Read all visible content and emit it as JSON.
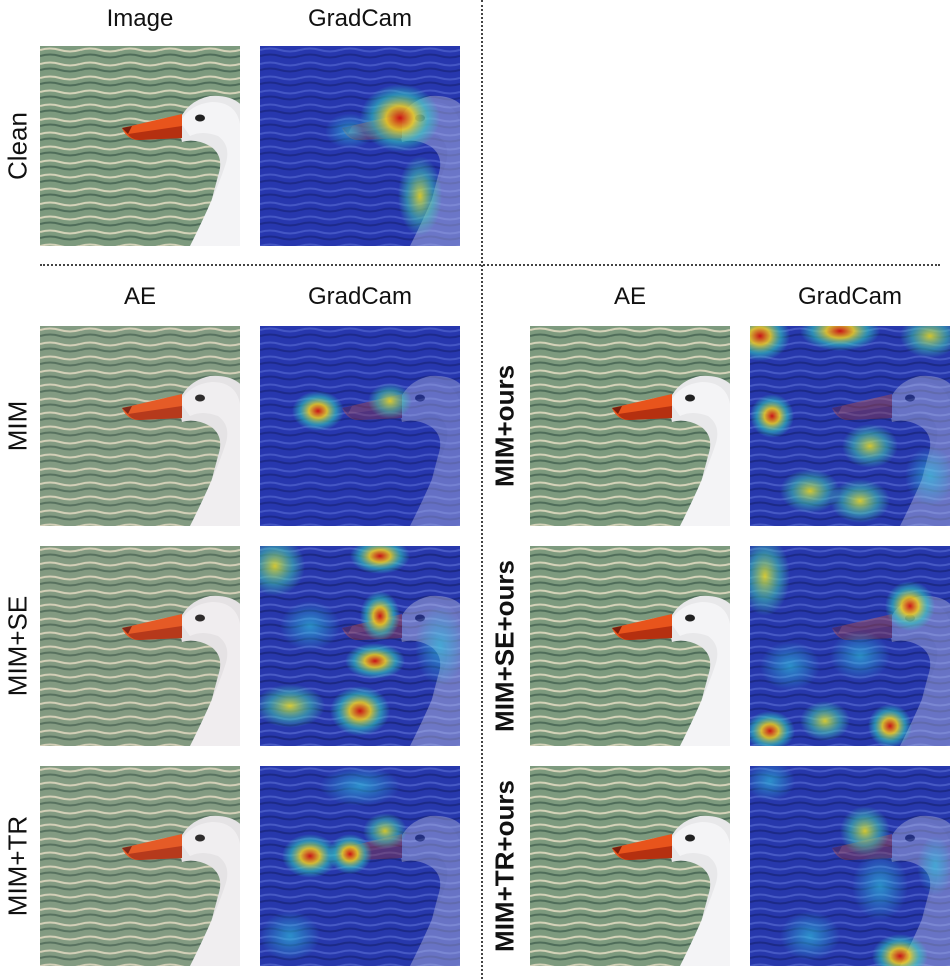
{
  "column_labels": {
    "top_image": "Image",
    "top_gradcam": "GradCam",
    "left_ae": "AE",
    "left_gradcam": "GradCam",
    "right_ae": "AE",
    "right_gradcam": "GradCam"
  },
  "row_labels": {
    "clean": "Clean",
    "mim": "MIM",
    "mim_se": "MIM+SE",
    "mim_tr": "MIM+TR",
    "mim_ours": "MIM+ours",
    "mim_se_ours": "MIM+SE+ours",
    "mim_tr_ours": "MIM+TR+ours"
  }
}
